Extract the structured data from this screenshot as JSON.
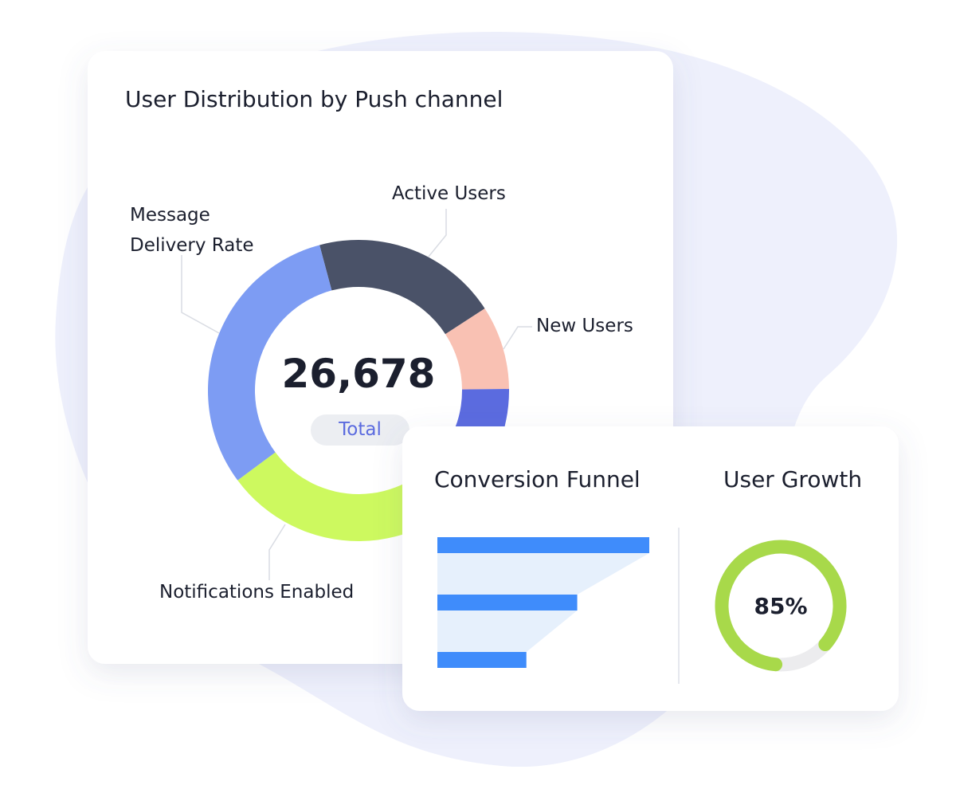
{
  "chart_data": [
    {
      "type": "donut",
      "title": "User Distribution by Push channel",
      "categories": [
        "Active Users",
        "New Users",
        null,
        "Notifications Enabled",
        "Message Delivery Rate"
      ],
      "values": [
        20,
        9,
        10,
        30,
        31
      ],
      "colors": [
        "#4a5268",
        "#f9c1b3",
        "#5b6bdf",
        "#cdf95f",
        "#7d9cf3"
      ],
      "center_value": "26,678",
      "center_label": "Total"
    },
    {
      "type": "funnel",
      "title": "Conversion Funnel",
      "values": [
        100,
        66,
        42
      ],
      "xlim": [
        0,
        100
      ],
      "color": "#3f8cfb"
    },
    {
      "type": "progress",
      "title": "User Growth",
      "values": [
        85
      ],
      "value_labels": [
        "85%"
      ],
      "ylim": [
        0,
        100
      ],
      "color": "#a8d94a"
    }
  ]
}
